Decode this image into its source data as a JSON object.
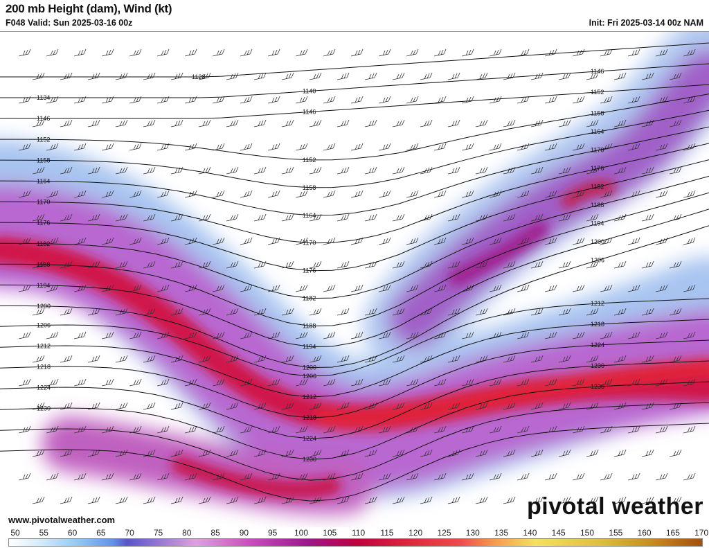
{
  "header": {
    "title": "200 mb Height (dam), Wind (kt)",
    "valid": "F048 Valid: Sun 2025-03-16 00z",
    "init": "Init: Fri 2025-03-14 00z NAM"
  },
  "map": {
    "contour_labels": [
      "1128",
      "1134",
      "1140",
      "1146",
      "1146",
      "1146",
      "1152",
      "1152",
      "1152",
      "1158",
      "1158",
      "1158",
      "1164",
      "1164",
      "1164",
      "1170",
      "1170",
      "1170",
      "1176",
      "1176",
      "1176",
      "1182",
      "1182",
      "1182",
      "1188",
      "1188",
      "1188",
      "1194",
      "1194",
      "1194",
      "1200",
      "1200",
      "1200",
      "1206",
      "1206",
      "1206",
      "1212",
      "1212",
      "1212",
      "1218",
      "1218",
      "1218",
      "1224",
      "1224",
      "1224",
      "1230",
      "1230",
      "1230",
      "1236"
    ],
    "jet_colors": {
      "light": "#a9c8f0",
      "mid": "#b050c8",
      "core": "#d0103c"
    }
  },
  "footer": {
    "url": "www.pivotalweather.com",
    "logo": "pivotal weather"
  },
  "colorbar": {
    "unit": "kt",
    "labels": [
      "50",
      "55",
      "60",
      "65",
      "70",
      "75",
      "80",
      "85",
      "90",
      "95",
      "100",
      "105",
      "110",
      "115",
      "120",
      "125",
      "130",
      "135",
      "140",
      "145",
      "150",
      "155",
      "160",
      "165",
      "170"
    ]
  }
}
